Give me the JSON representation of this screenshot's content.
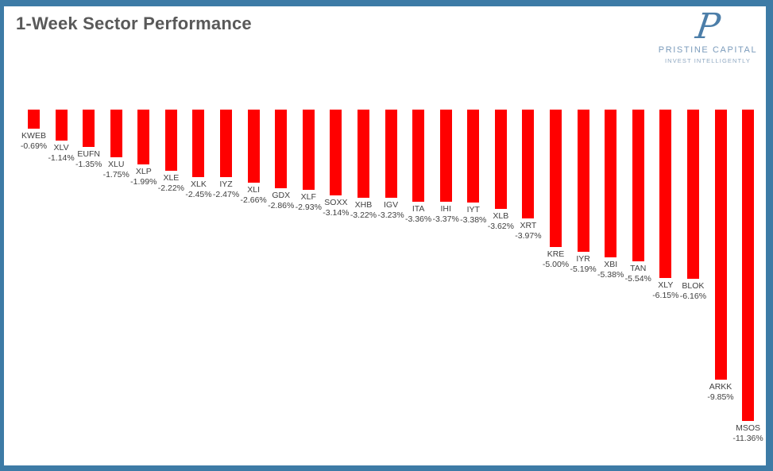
{
  "page": {
    "title": "1-Week Sector Performance"
  },
  "logo": {
    "monogram": "P",
    "name": "PRISTINE CAPITAL",
    "tagline": "INVEST INTELLIGENTLY"
  },
  "colors": {
    "bar": "#FF0000",
    "border": "#3D7BA6",
    "title_text": "#595959",
    "label_text": "#404040",
    "logo_monogram": "#4C7EA9",
    "logo_name": "#7C9CBC",
    "logo_tagline": "#8FA8C2"
  },
  "chart_data": {
    "type": "bar",
    "title": "1-Week Sector Performance",
    "orientation": "vertical-down-from-zero",
    "xlabel": "",
    "ylabel": "",
    "ylim": [
      -12,
      0
    ],
    "grid": false,
    "legend": "none",
    "bar_color": "#FF0000",
    "categories": [
      "KWEB",
      "XLV",
      "EUFN",
      "XLU",
      "XLP",
      "XLE",
      "XLK",
      "IYZ",
      "XLI",
      "GDX",
      "XLF",
      "SOXX",
      "XHB",
      "IGV",
      "ITA",
      "IHI",
      "IYT",
      "XLB",
      "XRT",
      "KRE",
      "IYR",
      "XBI",
      "TAN",
      "XLY",
      "BLOK",
      "ARKK",
      "MSOS"
    ],
    "values": [
      -0.69,
      -1.14,
      -1.35,
      -1.75,
      -1.99,
      -2.22,
      -2.45,
      -2.47,
      -2.66,
      -2.86,
      -2.93,
      -3.14,
      -3.22,
      -3.23,
      -3.36,
      -3.37,
      -3.38,
      -3.62,
      -3.97,
      -5.0,
      -5.19,
      -5.38,
      -5.54,
      -6.15,
      -6.16,
      -9.85,
      -11.36
    ],
    "value_labels": [
      "-0.69%",
      "-1.14%",
      "-1.35%",
      "-1.75%",
      "-1.99%",
      "-2.22%",
      "-2.45%",
      "-2.47%",
      "-2.66%",
      "-2.86%",
      "-2.93%",
      "-3.14%",
      "-3.22%",
      "-3.23%",
      "-3.36%",
      "-3.37%",
      "-3.38%",
      "-3.62%",
      "-3.97%",
      "-5.00%",
      "-5.19%",
      "-5.38%",
      "-5.54%",
      "-6.15%",
      "-6.16%",
      "-9.85%",
      "-11.36%"
    ]
  }
}
